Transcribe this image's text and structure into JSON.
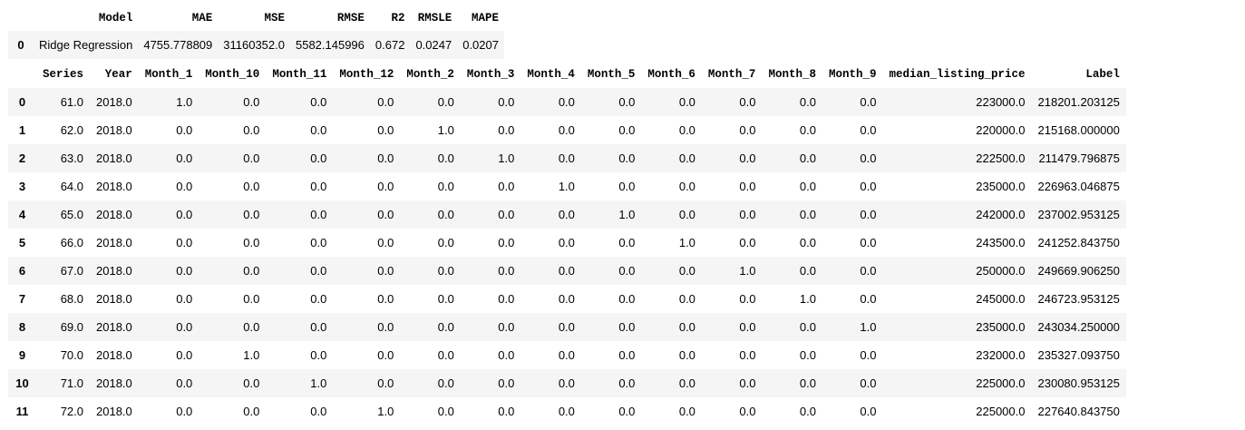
{
  "metrics": {
    "columns": [
      "Model",
      "MAE",
      "MSE",
      "RMSE",
      "R2",
      "RMSLE",
      "MAPE"
    ],
    "rows": [
      {
        "index": "0",
        "values": [
          "Ridge Regression",
          "4755.778809",
          "31160352.0",
          "5582.145996",
          "0.672",
          "0.0247",
          "0.0207"
        ]
      }
    ]
  },
  "data": {
    "columns": [
      "Series",
      "Year",
      "Month_1",
      "Month_10",
      "Month_11",
      "Month_12",
      "Month_2",
      "Month_3",
      "Month_4",
      "Month_5",
      "Month_6",
      "Month_7",
      "Month_8",
      "Month_9",
      "median_listing_price",
      "Label"
    ],
    "rows": [
      {
        "index": "0",
        "values": [
          "61.0",
          "2018.0",
          "1.0",
          "0.0",
          "0.0",
          "0.0",
          "0.0",
          "0.0",
          "0.0",
          "0.0",
          "0.0",
          "0.0",
          "0.0",
          "0.0",
          "223000.0",
          "218201.203125"
        ]
      },
      {
        "index": "1",
        "values": [
          "62.0",
          "2018.0",
          "0.0",
          "0.0",
          "0.0",
          "0.0",
          "1.0",
          "0.0",
          "0.0",
          "0.0",
          "0.0",
          "0.0",
          "0.0",
          "0.0",
          "220000.0",
          "215168.000000"
        ]
      },
      {
        "index": "2",
        "values": [
          "63.0",
          "2018.0",
          "0.0",
          "0.0",
          "0.0",
          "0.0",
          "0.0",
          "1.0",
          "0.0",
          "0.0",
          "0.0",
          "0.0",
          "0.0",
          "0.0",
          "222500.0",
          "211479.796875"
        ]
      },
      {
        "index": "3",
        "values": [
          "64.0",
          "2018.0",
          "0.0",
          "0.0",
          "0.0",
          "0.0",
          "0.0",
          "0.0",
          "1.0",
          "0.0",
          "0.0",
          "0.0",
          "0.0",
          "0.0",
          "235000.0",
          "226963.046875"
        ]
      },
      {
        "index": "4",
        "values": [
          "65.0",
          "2018.0",
          "0.0",
          "0.0",
          "0.0",
          "0.0",
          "0.0",
          "0.0",
          "0.0",
          "1.0",
          "0.0",
          "0.0",
          "0.0",
          "0.0",
          "242000.0",
          "237002.953125"
        ]
      },
      {
        "index": "5",
        "values": [
          "66.0",
          "2018.0",
          "0.0",
          "0.0",
          "0.0",
          "0.0",
          "0.0",
          "0.0",
          "0.0",
          "0.0",
          "1.0",
          "0.0",
          "0.0",
          "0.0",
          "243500.0",
          "241252.843750"
        ]
      },
      {
        "index": "6",
        "values": [
          "67.0",
          "2018.0",
          "0.0",
          "0.0",
          "0.0",
          "0.0",
          "0.0",
          "0.0",
          "0.0",
          "0.0",
          "0.0",
          "1.0",
          "0.0",
          "0.0",
          "250000.0",
          "249669.906250"
        ]
      },
      {
        "index": "7",
        "values": [
          "68.0",
          "2018.0",
          "0.0",
          "0.0",
          "0.0",
          "0.0",
          "0.0",
          "0.0",
          "0.0",
          "0.0",
          "0.0",
          "0.0",
          "1.0",
          "0.0",
          "245000.0",
          "246723.953125"
        ]
      },
      {
        "index": "8",
        "values": [
          "69.0",
          "2018.0",
          "0.0",
          "0.0",
          "0.0",
          "0.0",
          "0.0",
          "0.0",
          "0.0",
          "0.0",
          "0.0",
          "0.0",
          "0.0",
          "1.0",
          "235000.0",
          "243034.250000"
        ]
      },
      {
        "index": "9",
        "values": [
          "70.0",
          "2018.0",
          "0.0",
          "1.0",
          "0.0",
          "0.0",
          "0.0",
          "0.0",
          "0.0",
          "0.0",
          "0.0",
          "0.0",
          "0.0",
          "0.0",
          "232000.0",
          "235327.093750"
        ]
      },
      {
        "index": "10",
        "values": [
          "71.0",
          "2018.0",
          "0.0",
          "0.0",
          "1.0",
          "0.0",
          "0.0",
          "0.0",
          "0.0",
          "0.0",
          "0.0",
          "0.0",
          "0.0",
          "0.0",
          "225000.0",
          "230080.953125"
        ]
      },
      {
        "index": "11",
        "values": [
          "72.0",
          "2018.0",
          "0.0",
          "0.0",
          "0.0",
          "1.0",
          "0.0",
          "0.0",
          "0.0",
          "0.0",
          "0.0",
          "0.0",
          "0.0",
          "0.0",
          "225000.0",
          "227640.843750"
        ]
      }
    ]
  }
}
